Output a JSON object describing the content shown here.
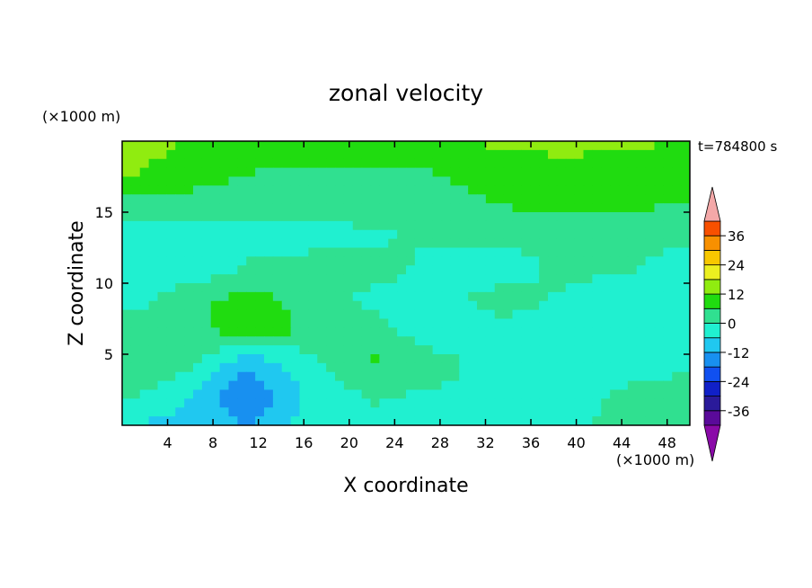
{
  "chart_data": {
    "type": "heatmap",
    "title": "zonal velocity",
    "xlabel": "X coordinate",
    "ylabel": "Z coordinate",
    "x_unit": "(×1000 m)",
    "y_unit": "(×1000 m)",
    "time_label": "t=784800 s",
    "xlim": [
      0,
      50
    ],
    "ylim": [
      0,
      20
    ],
    "x_ticks": [
      4,
      8,
      12,
      16,
      20,
      24,
      28,
      32,
      36,
      40,
      44,
      48
    ],
    "y_ticks": [
      5,
      10,
      15
    ],
    "colorbar": {
      "levels": [
        -42,
        -36,
        -30,
        -24,
        -18,
        -12,
        -6,
        0,
        6,
        12,
        18,
        24,
        30,
        36,
        42
      ],
      "labels": [
        36,
        24,
        12,
        0,
        -12,
        -24,
        -36
      ],
      "colors": [
        "#5a0a9a",
        "#2a1a9a",
        "#1020c8",
        "#1050f0",
        "#1890f0",
        "#20c8f0",
        "#20f0d0",
        "#30e090",
        "#20dc10",
        "#90ec10",
        "#ecf020",
        "#f8c800",
        "#f89000",
        "#f85000",
        "#e81818"
      ],
      "min_tri_color": "#8a0aa8",
      "max_tri_color": "#f4a8a8"
    },
    "field": [
      [
        14,
        12,
        10,
        10,
        11,
        12,
        13,
        14,
        13,
        12
      ],
      [
        13,
        10,
        6,
        5,
        5,
        6,
        8,
        10,
        9,
        8
      ],
      [
        4,
        3,
        2,
        2,
        3,
        4,
        6,
        8,
        7,
        6
      ],
      [
        -2,
        -4,
        -3,
        -2,
        -1,
        1,
        2,
        3,
        2,
        1
      ],
      [
        -3,
        -6,
        1,
        2,
        3,
        -2,
        -4,
        2,
        1,
        -3
      ],
      [
        -4,
        4,
        8,
        4,
        -2,
        -3,
        3,
        -1,
        -5,
        -6
      ],
      [
        5,
        4,
        9,
        5,
        3,
        -5,
        -2,
        -3,
        -4,
        -2
      ],
      [
        6,
        2,
        -10,
        -2,
        7,
        3,
        -4,
        -6,
        -3,
        -1
      ],
      [
        2,
        -5,
        -18,
        -4,
        1,
        -1,
        -2,
        -3,
        1,
        2
      ],
      [
        -6,
        -8,
        -12,
        -3,
        -2,
        -1,
        -1,
        -2,
        3,
        5
      ]
    ]
  }
}
